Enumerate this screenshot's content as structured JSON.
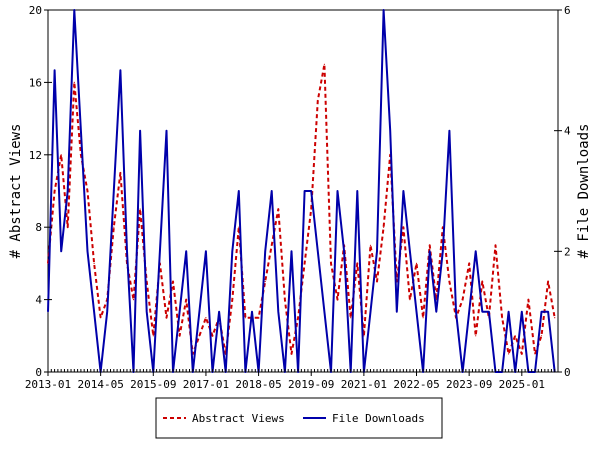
{
  "chart_data": {
    "type": "line",
    "xlabel": "",
    "ylabel": "# Abstract Views",
    "y2label": "# File Downloads",
    "ylim": [
      0,
      20
    ],
    "y2lim": [
      0,
      6
    ],
    "xlim": [
      "2013-01",
      "2025-12"
    ],
    "x_ticks": [
      "2013-01",
      "2014-05",
      "2015-09",
      "2017-01",
      "2018-05",
      "2019-09",
      "2021-01",
      "2022-05",
      "2023-09",
      "2025-01"
    ],
    "y_ticks": [
      "0",
      "4",
      "8",
      "12",
      "16",
      "20"
    ],
    "y2_ticks": [
      "0",
      "2",
      "4",
      "6"
    ],
    "grid": false,
    "legend_position": "bottom",
    "series": [
      {
        "name": "Abstract Views",
        "axis": "left",
        "color": "#cc0000",
        "style": "dashed",
        "x": [
          "2013-01",
          "2013-03",
          "2013-05",
          "2013-07",
          "2013-09",
          "2013-11",
          "2014-01",
          "2014-03",
          "2014-05",
          "2014-07",
          "2014-09",
          "2014-11",
          "2015-01",
          "2015-03",
          "2015-05",
          "2015-07",
          "2015-09",
          "2015-11",
          "2016-01",
          "2016-03",
          "2016-05",
          "2016-07",
          "2016-09",
          "2016-11",
          "2017-01",
          "2017-03",
          "2017-05",
          "2017-07",
          "2017-09",
          "2017-11",
          "2018-01",
          "2018-03",
          "2018-05",
          "2018-07",
          "2018-09",
          "2018-11",
          "2019-01",
          "2019-03",
          "2019-05",
          "2019-07",
          "2019-09",
          "2019-11",
          "2020-01",
          "2020-03",
          "2020-05",
          "2020-07",
          "2020-09",
          "2020-11",
          "2021-01",
          "2021-03",
          "2021-05",
          "2021-07",
          "2021-09",
          "2021-11",
          "2022-01",
          "2022-03",
          "2022-05",
          "2022-07",
          "2022-09",
          "2022-11",
          "2023-01",
          "2023-03",
          "2023-05",
          "2023-07",
          "2023-09",
          "2023-11",
          "2024-01",
          "2024-03",
          "2024-05",
          "2024-07",
          "2024-09",
          "2024-11",
          "2025-01",
          "2025-03",
          "2025-05",
          "2025-07",
          "2025-09",
          "2025-11"
        ],
        "values": [
          6,
          10,
          12,
          8,
          16,
          12,
          10,
          6,
          3,
          4,
          8,
          11,
          6,
          4,
          9,
          5,
          2,
          6,
          3,
          5,
          2,
          4,
          1,
          2,
          3,
          2,
          3,
          1,
          4,
          8,
          3,
          3,
          3,
          5,
          7,
          9,
          4,
          1,
          3,
          6,
          9,
          15,
          17,
          6,
          4,
          7,
          3,
          6,
          2,
          7,
          5,
          8,
          12,
          5,
          8,
          4,
          6,
          3,
          7,
          4,
          8,
          5,
          3,
          4,
          6,
          2,
          5,
          3,
          7,
          3,
          1,
          2,
          1,
          4,
          1,
          2,
          5,
          3
        ]
      },
      {
        "name": "File Downloads",
        "axis": "right",
        "color": "#0000aa",
        "style": "solid",
        "x": [
          "2013-01",
          "2013-03",
          "2013-05",
          "2013-07",
          "2013-09",
          "2013-11",
          "2014-01",
          "2014-03",
          "2014-05",
          "2014-07",
          "2014-09",
          "2014-11",
          "2015-01",
          "2015-03",
          "2015-05",
          "2015-07",
          "2015-09",
          "2015-11",
          "2016-01",
          "2016-03",
          "2016-05",
          "2016-07",
          "2016-09",
          "2016-11",
          "2017-01",
          "2017-03",
          "2017-05",
          "2017-07",
          "2017-09",
          "2017-11",
          "2018-01",
          "2018-03",
          "2018-05",
          "2018-07",
          "2018-09",
          "2018-11",
          "2019-01",
          "2019-03",
          "2019-05",
          "2019-07",
          "2019-09",
          "2019-11",
          "2020-01",
          "2020-03",
          "2020-05",
          "2020-07",
          "2020-09",
          "2020-11",
          "2021-01",
          "2021-03",
          "2021-05",
          "2021-07",
          "2021-09",
          "2021-11",
          "2022-01",
          "2022-03",
          "2022-05",
          "2022-07",
          "2022-09",
          "2022-11",
          "2023-01",
          "2023-03",
          "2023-05",
          "2023-07",
          "2023-09",
          "2023-11",
          "2024-01",
          "2024-03",
          "2024-05",
          "2024-07",
          "2024-09",
          "2024-11",
          "2025-01",
          "2025-03",
          "2025-05",
          "2025-07",
          "2025-09",
          "2025-11"
        ],
        "values": [
          1,
          5,
          2,
          3,
          6,
          4,
          2,
          1,
          0,
          1,
          3,
          5,
          2,
          0,
          4,
          1,
          0,
          2,
          4,
          0,
          1,
          2,
          0,
          1,
          2,
          0,
          1,
          0,
          2,
          3,
          0,
          1,
          0,
          2,
          3,
          1,
          0,
          2,
          0,
          3,
          3,
          2,
          1,
          0,
          3,
          2,
          0,
          3,
          0,
          1,
          2,
          6,
          4,
          1,
          3,
          2,
          1,
          0,
          2,
          1,
          2,
          4,
          1,
          0,
          1,
          2,
          1,
          1,
          0,
          0,
          1,
          0,
          1,
          0,
          0,
          1,
          1,
          0
        ]
      }
    ]
  }
}
